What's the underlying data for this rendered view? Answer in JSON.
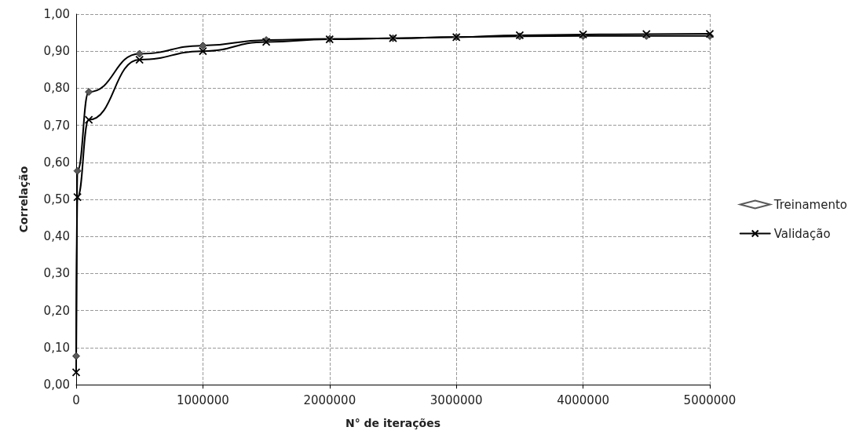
{
  "chart_data": {
    "type": "line",
    "xlabel": "N° de iterações",
    "ylabel": "Correlação",
    "x": [
      0,
      10000,
      100000,
      500000,
      1000000,
      1500000,
      2000000,
      2500000,
      3000000,
      3500000,
      4000000,
      4500000,
      5000000
    ],
    "series": [
      {
        "name": "Treinamento",
        "color": "#595959",
        "marker": "diamond",
        "values": [
          0.077,
          0.577,
          0.79,
          0.893,
          0.915,
          0.93,
          0.933,
          0.935,
          0.938,
          0.94,
          0.941,
          0.941,
          0.941
        ]
      },
      {
        "name": "Validação",
        "color": "#000000",
        "marker": "cross",
        "values": [
          0.033,
          0.506,
          0.715,
          0.877,
          0.9,
          0.925,
          0.932,
          0.935,
          0.938,
          0.943,
          0.945,
          0.946,
          0.947
        ]
      }
    ],
    "xlim": [
      0,
      5000000
    ],
    "xticks": [
      0,
      1000000,
      2000000,
      3000000,
      4000000,
      5000000
    ],
    "ylim": [
      0,
      1
    ],
    "yticks": [
      {
        "value": 0,
        "label": "0,00"
      },
      {
        "value": 0.1,
        "label": "0,10"
      },
      {
        "value": 0.2,
        "label": "0,20"
      },
      {
        "value": 0.3,
        "label": "0,30"
      },
      {
        "value": 0.4,
        "label": "0,40"
      },
      {
        "value": 0.5,
        "label": "0,50"
      },
      {
        "value": 0.6,
        "label": "0,60"
      },
      {
        "value": 0.7,
        "label": "0,70"
      },
      {
        "value": 0.8,
        "label": "0,80"
      },
      {
        "value": 0.9,
        "label": "0,90"
      },
      {
        "value": 1,
        "label": "1,00"
      }
    ],
    "grid": true,
    "legend": "right",
    "line_style": "solid"
  }
}
